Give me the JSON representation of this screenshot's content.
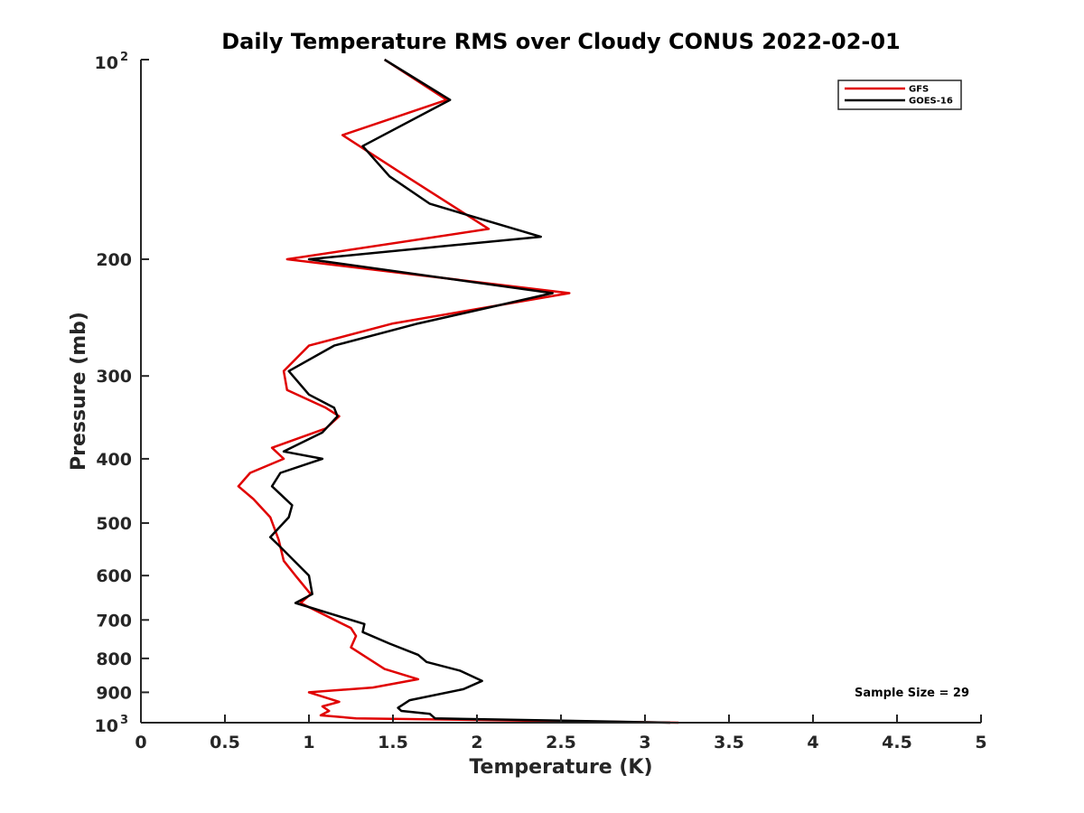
{
  "chart_data": {
    "type": "line",
    "title": "Daily Temperature RMS over Cloudy CONUS 2022-02-01",
    "xlabel": "Temperature (K)",
    "ylabel": "Pressure (mb)",
    "xlim": [
      0,
      5
    ],
    "ylim": [
      100,
      1000
    ],
    "yscale": "log",
    "yreverse": true,
    "x_ticks": [
      0,
      0.5,
      1,
      1.5,
      2,
      2.5,
      3,
      3.5,
      4,
      4.5,
      5
    ],
    "x_tick_labels": [
      "0",
      "0.5",
      "1",
      "1.5",
      "2",
      "2.5",
      "3",
      "3.5",
      "4",
      "4.5",
      "5"
    ],
    "y_ticks": [
      {
        "value": 100,
        "base": "10",
        "exp": "2"
      },
      {
        "value": 200,
        "label": "200"
      },
      {
        "value": 300,
        "label": "300"
      },
      {
        "value": 400,
        "label": "400"
      },
      {
        "value": 500,
        "label": "500"
      },
      {
        "value": 600,
        "label": "600"
      },
      {
        "value": 700,
        "label": "700"
      },
      {
        "value": 800,
        "label": "800"
      },
      {
        "value": 900,
        "label": "900"
      },
      {
        "value": 1000,
        "base": "10",
        "exp": "3"
      }
    ],
    "legend_position": "top-right",
    "annotation": "Sample Size = 29",
    "series": [
      {
        "name": "GFS",
        "color": "#e00000",
        "points": [
          [
            1.45,
            100
          ],
          [
            1.82,
            115
          ],
          [
            1.2,
            130
          ],
          [
            1.58,
            150
          ],
          [
            2.07,
            180
          ],
          [
            0.87,
            200
          ],
          [
            2.55,
            225
          ],
          [
            1.5,
            250
          ],
          [
            1.0,
            270
          ],
          [
            0.85,
            295
          ],
          [
            0.87,
            315
          ],
          [
            1.1,
            335
          ],
          [
            1.18,
            345
          ],
          [
            1.1,
            360
          ],
          [
            0.78,
            385
          ],
          [
            0.85,
            400
          ],
          [
            0.65,
            420
          ],
          [
            0.58,
            440
          ],
          [
            0.67,
            460
          ],
          [
            0.77,
            490
          ],
          [
            0.82,
            530
          ],
          [
            0.85,
            570
          ],
          [
            0.92,
            600
          ],
          [
            1.01,
            640
          ],
          [
            0.95,
            660
          ],
          [
            1.25,
            720
          ],
          [
            1.28,
            740
          ],
          [
            1.25,
            770
          ],
          [
            1.45,
            830
          ],
          [
            1.65,
            860
          ],
          [
            1.38,
            885
          ],
          [
            1.0,
            900
          ],
          [
            1.18,
            930
          ],
          [
            1.08,
            945
          ],
          [
            1.12,
            960
          ],
          [
            1.07,
            975
          ],
          [
            1.28,
            985
          ],
          [
            3.2,
            1000
          ]
        ]
      },
      {
        "name": "GOES-16",
        "color": "#000000",
        "points": [
          [
            1.45,
            100
          ],
          [
            1.84,
            115
          ],
          [
            1.32,
            135
          ],
          [
            1.48,
            150
          ],
          [
            1.72,
            165
          ],
          [
            2.38,
            185
          ],
          [
            1.0,
            200
          ],
          [
            2.45,
            225
          ],
          [
            1.65,
            250
          ],
          [
            1.15,
            270
          ],
          [
            0.88,
            295
          ],
          [
            1.0,
            320
          ],
          [
            1.15,
            335
          ],
          [
            1.17,
            345
          ],
          [
            1.08,
            365
          ],
          [
            0.85,
            390
          ],
          [
            1.08,
            400
          ],
          [
            0.83,
            420
          ],
          [
            0.78,
            440
          ],
          [
            0.9,
            470
          ],
          [
            0.88,
            490
          ],
          [
            0.77,
            525
          ],
          [
            0.82,
            540
          ],
          [
            1.0,
            600
          ],
          [
            1.02,
            640
          ],
          [
            0.92,
            660
          ],
          [
            1.33,
            710
          ],
          [
            1.32,
            730
          ],
          [
            1.48,
            760
          ],
          [
            1.65,
            790
          ],
          [
            1.7,
            810
          ],
          [
            1.9,
            835
          ],
          [
            2.03,
            865
          ],
          [
            1.92,
            890
          ],
          [
            1.6,
            925
          ],
          [
            1.53,
            950
          ],
          [
            1.55,
            960
          ],
          [
            1.72,
            970
          ],
          [
            1.75,
            985
          ],
          [
            3.15,
            1000
          ]
        ]
      }
    ]
  }
}
